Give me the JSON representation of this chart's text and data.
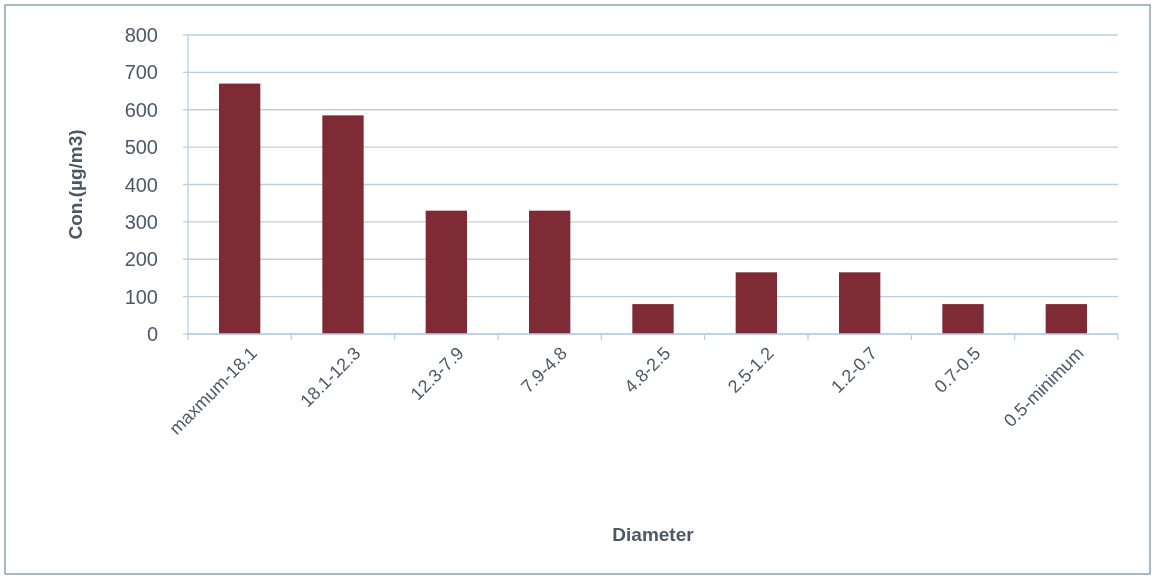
{
  "chart_data": {
    "type": "bar",
    "xlabel": "Diameter",
    "ylabel": "Con.(µg/m3)",
    "categories": [
      "maxmum-18.1",
      "18.1-12.3",
      "12.3-7.9",
      "7.9-4.8",
      "4.8-2.5",
      "2.5-1.2",
      "1.2-0.7",
      "0.7-0.5",
      "0.5-minimum"
    ],
    "values": [
      670,
      585,
      330,
      330,
      80,
      165,
      165,
      80,
      80
    ],
    "color": "#7f2b35",
    "ylim": [
      0,
      800
    ],
    "yticks": [
      0,
      100,
      200,
      300,
      400,
      500,
      600,
      700,
      800
    ],
    "grid": "y"
  }
}
